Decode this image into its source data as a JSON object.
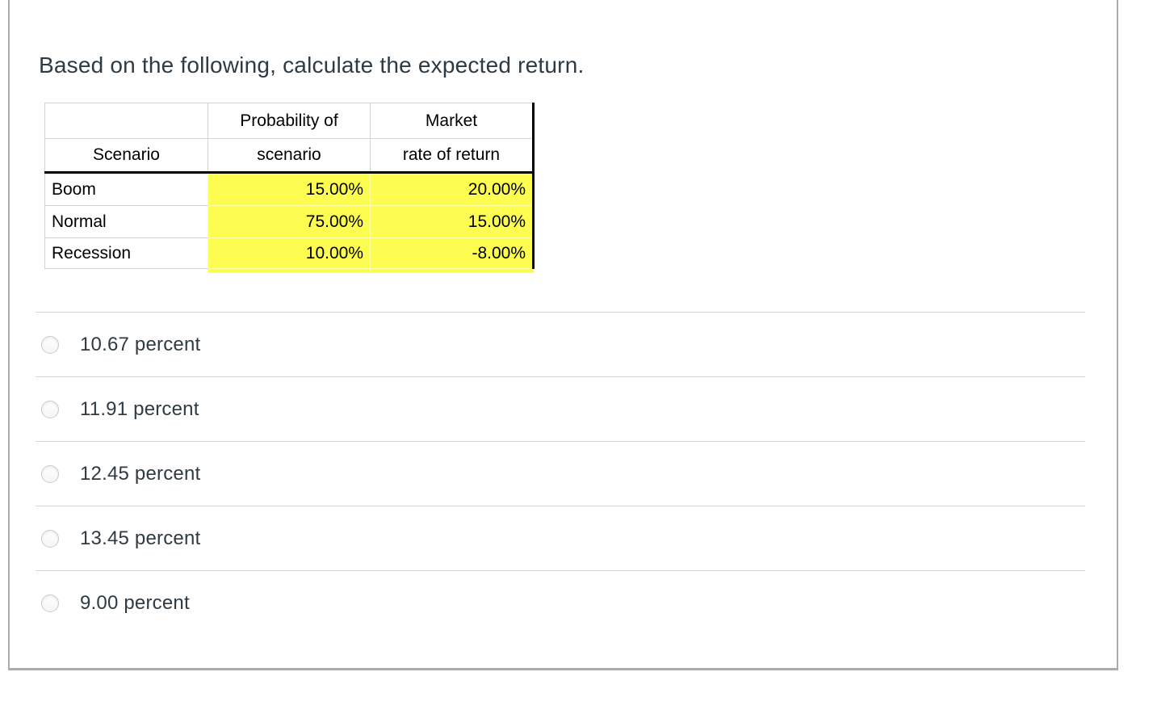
{
  "question": {
    "text": "Based on the following, calculate the expected return."
  },
  "table": {
    "header": {
      "col1_line1": "",
      "col1_line2": "Scenario",
      "col2_line1": "Probability of",
      "col2_line2": "scenario",
      "col3_line1": "Market",
      "col3_line2": "rate of return"
    },
    "rows": [
      {
        "scenario": "Boom",
        "probability": "15.00%",
        "return": "20.00%"
      },
      {
        "scenario": "Normal",
        "probability": "75.00%",
        "return": "15.00%"
      },
      {
        "scenario": "Recession",
        "probability": "10.00%",
        "return": "-8.00%"
      }
    ],
    "highlight_color": "#fdfd51"
  },
  "options": [
    {
      "label": "10.67 percent",
      "selected": false
    },
    {
      "label": "11.91 percent",
      "selected": false
    },
    {
      "label": "12.45 percent",
      "selected": false
    },
    {
      "label": "13.45 percent",
      "selected": false
    },
    {
      "label": "9.00 percent",
      "selected": false
    }
  ],
  "colors": {
    "text": "#2d3b45",
    "frame_border": "#ababab",
    "divider": "#d6d6d6",
    "table_grid": "#d2d2d2",
    "table_black_border": "#000000",
    "highlight": "#fdfd51"
  }
}
